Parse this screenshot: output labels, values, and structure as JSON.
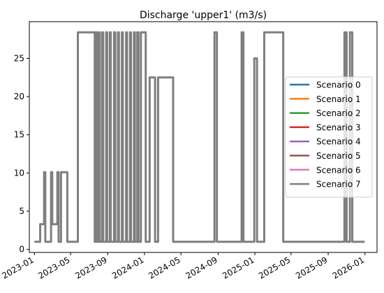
{
  "chart_data": {
    "type": "line",
    "title": "Discharge 'upper1' (m3/s)",
    "xlabel": "",
    "ylabel": "",
    "xlim": [
      "2022-12-15",
      "2026-02-10"
    ],
    "ylim": [
      -0.4,
      29.8
    ],
    "x_ticks": [
      "2023-01",
      "2023-05",
      "2023-09",
      "2024-01",
      "2024-05",
      "2024-09",
      "2025-01",
      "2025-05",
      "2025-09",
      "2026-01"
    ],
    "y_ticks": [
      0,
      5,
      10,
      15,
      20,
      25
    ],
    "grid": false,
    "legend_position": "center-right",
    "series": [
      {
        "name": "Scenario 0",
        "color": "#1f77b4"
      },
      {
        "name": "Scenario 1",
        "color": "#ff7f0e"
      },
      {
        "name": "Scenario 2",
        "color": "#2ca02c"
      },
      {
        "name": "Scenario 3",
        "color": "#d62728"
      },
      {
        "name": "Scenario 4",
        "color": "#9467bd"
      },
      {
        "name": "Scenario 5",
        "color": "#8c564b"
      },
      {
        "name": "Scenario 6",
        "color": "#e377c2"
      },
      {
        "name": "Scenario 7",
        "color": "#7f7f7f",
        "points": [
          [
            "2023-01-01",
            1.0
          ],
          [
            "2023-01-20",
            1.0
          ],
          [
            "2023-01-20",
            3.3
          ],
          [
            "2023-02-02",
            3.3
          ],
          [
            "2023-02-02",
            10.1
          ],
          [
            "2023-02-06",
            10.1
          ],
          [
            "2023-02-06",
            1.0
          ],
          [
            "2023-02-25",
            1.0
          ],
          [
            "2023-02-25",
            10.1
          ],
          [
            "2023-03-01",
            10.1
          ],
          [
            "2023-03-01",
            3.3
          ],
          [
            "2023-03-18",
            3.3
          ],
          [
            "2023-03-18",
            10.1
          ],
          [
            "2023-03-22",
            10.1
          ],
          [
            "2023-03-22",
            1.0
          ],
          [
            "2023-03-30",
            1.0
          ],
          [
            "2023-03-30",
            10.1
          ],
          [
            "2023-04-20",
            10.1
          ],
          [
            "2023-04-20",
            1.0
          ],
          [
            "2023-05-25",
            1.0
          ],
          [
            "2023-05-25",
            28.4
          ],
          [
            "2023-07-20",
            28.4
          ],
          [
            "2023-07-20",
            1.0
          ],
          [
            "2023-07-24",
            1.0
          ],
          [
            "2023-07-24",
            28.4
          ],
          [
            "2023-07-28",
            28.4
          ],
          [
            "2023-07-28",
            1.0
          ],
          [
            "2023-08-03",
            1.0
          ],
          [
            "2023-08-03",
            28.4
          ],
          [
            "2023-08-06",
            28.4
          ],
          [
            "2023-08-06",
            1.0
          ],
          [
            "2023-08-14",
            1.0
          ],
          [
            "2023-08-14",
            28.4
          ],
          [
            "2023-08-17",
            28.4
          ],
          [
            "2023-08-17",
            1.0
          ],
          [
            "2023-08-27",
            1.0
          ],
          [
            "2023-08-27",
            28.4
          ],
          [
            "2023-08-30",
            28.4
          ],
          [
            "2023-08-30",
            1.0
          ],
          [
            "2023-09-08",
            1.0
          ],
          [
            "2023-09-08",
            28.4
          ],
          [
            "2023-09-11",
            28.4
          ],
          [
            "2023-09-11",
            1.0
          ],
          [
            "2023-09-22",
            1.0
          ],
          [
            "2023-09-22",
            28.4
          ],
          [
            "2023-09-26",
            28.4
          ],
          [
            "2023-09-26",
            1.0
          ],
          [
            "2023-10-05",
            1.0
          ],
          [
            "2023-10-05",
            28.4
          ],
          [
            "2023-10-08",
            28.4
          ],
          [
            "2023-10-08",
            1.0
          ],
          [
            "2023-10-18",
            1.0
          ],
          [
            "2023-10-18",
            28.4
          ],
          [
            "2023-10-21",
            28.4
          ],
          [
            "2023-10-21",
            1.0
          ],
          [
            "2023-11-01",
            1.0
          ],
          [
            "2023-11-01",
            28.4
          ],
          [
            "2023-11-04",
            28.4
          ],
          [
            "2023-11-04",
            1.0
          ],
          [
            "2023-11-14",
            1.0
          ],
          [
            "2023-11-14",
            28.4
          ],
          [
            "2023-11-17",
            28.4
          ],
          [
            "2023-11-17",
            1.0
          ],
          [
            "2023-11-27",
            1.0
          ],
          [
            "2023-11-27",
            28.4
          ],
          [
            "2023-11-30",
            28.4
          ],
          [
            "2023-11-30",
            1.0
          ],
          [
            "2023-12-08",
            1.0
          ],
          [
            "2023-12-08",
            28.4
          ],
          [
            "2023-12-12",
            28.4
          ],
          [
            "2023-12-12",
            1.0
          ],
          [
            "2023-12-20",
            1.0
          ],
          [
            "2023-12-20",
            28.4
          ],
          [
            "2024-01-05",
            28.4
          ],
          [
            "2024-01-05",
            1.0
          ],
          [
            "2024-01-18",
            1.0
          ],
          [
            "2024-01-18",
            22.5
          ],
          [
            "2024-02-05",
            22.5
          ],
          [
            "2024-02-05",
            1.0
          ],
          [
            "2024-02-15",
            1.0
          ],
          [
            "2024-02-15",
            22.5
          ],
          [
            "2024-04-05",
            22.5
          ],
          [
            "2024-04-05",
            1.0
          ],
          [
            "2024-08-20",
            1.0
          ],
          [
            "2024-08-20",
            28.4
          ],
          [
            "2024-08-28",
            28.4
          ],
          [
            "2024-08-28",
            1.0
          ],
          [
            "2024-11-18",
            1.0
          ],
          [
            "2024-11-18",
            28.4
          ],
          [
            "2024-11-24",
            28.4
          ],
          [
            "2024-11-24",
            1.0
          ],
          [
            "2024-12-30",
            1.0
          ],
          [
            "2024-12-30",
            25.0
          ],
          [
            "2025-01-08",
            25.0
          ],
          [
            "2025-01-08",
            1.0
          ],
          [
            "2025-02-01",
            1.0
          ],
          [
            "2025-02-01",
            28.4
          ],
          [
            "2025-04-05",
            28.4
          ],
          [
            "2025-04-05",
            1.0
          ],
          [
            "2025-10-25",
            1.0
          ],
          [
            "2025-10-25",
            28.4
          ],
          [
            "2025-11-01",
            28.4
          ],
          [
            "2025-11-01",
            1.0
          ],
          [
            "2025-11-12",
            1.0
          ],
          [
            "2025-11-12",
            28.4
          ],
          [
            "2025-11-20",
            28.4
          ],
          [
            "2025-11-20",
            1.0
          ],
          [
            "2025-12-31",
            1.0
          ]
        ]
      }
    ]
  }
}
